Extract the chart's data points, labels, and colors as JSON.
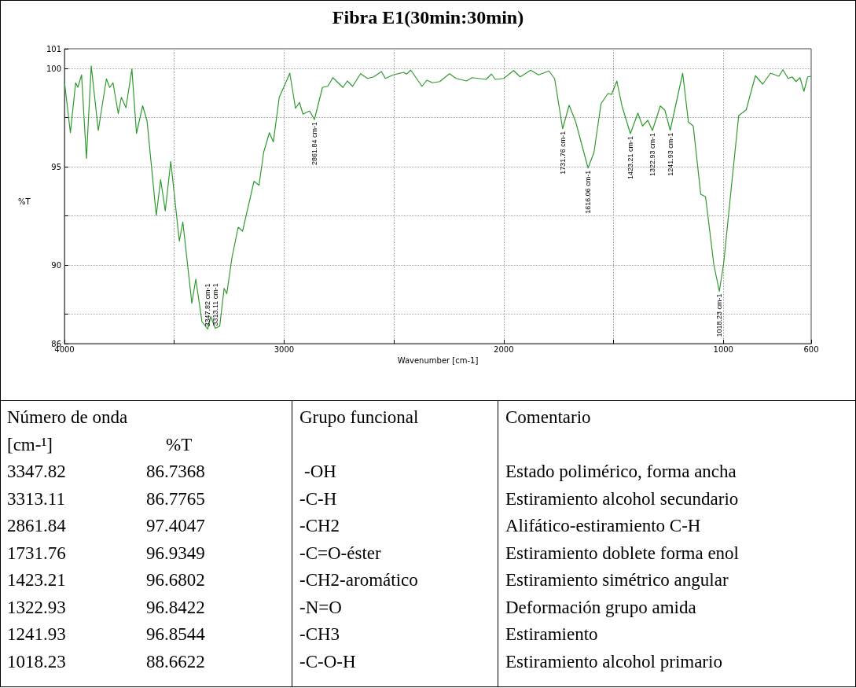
{
  "chart_data": [
    {
      "type": "line",
      "title": "Fibra E1(30min:30min)",
      "xlabel": "Wavenumber [cm-1]",
      "ylabel": "%T",
      "xlim": [
        4000,
        600
      ],
      "xticks": [
        4000,
        {
          "value": 3500,
          "label": null
        },
        3000,
        {
          "value": 2500,
          "label": null
        },
        2000,
        {
          "value": 1500,
          "label": null
        },
        1000,
        600
      ],
      "ylim": [
        86,
        101
      ],
      "yticks": [
        86,
        {
          "value": 87.5,
          "label": null
        },
        90,
        {
          "value": 92.5,
          "label": null
        },
        95,
        {
          "value": 97.5,
          "label": null
        },
        100,
        101
      ],
      "grid": true,
      "marker": "none",
      "line_style": "solid",
      "series": [
        {
          "color": "#2f9a2f",
          "x": [
            4000,
            3973,
            3949,
            3939,
            3922,
            3900,
            3878,
            3846,
            3809,
            3794,
            3779,
            3755,
            3741,
            3720,
            3693,
            3672,
            3644,
            3624,
            3582,
            3562,
            3541,
            3516,
            3477,
            3461,
            3420,
            3402,
            3374,
            3347.82,
            3334,
            3313.11,
            3293,
            3273,
            3261,
            3237,
            3209,
            3189,
            3137,
            3114,
            3093,
            3067,
            3049,
            3022,
            2998,
            2974,
            2948,
            2930,
            2914,
            2884,
            2861.84,
            2825,
            2801,
            2778,
            2732,
            2712,
            2688,
            2652,
            2620,
            2592,
            2557,
            2539,
            2503,
            2455,
            2443,
            2423,
            2372,
            2350,
            2324,
            2291,
            2247,
            2217,
            2169,
            2145,
            2080,
            2056,
            2038,
            2000,
            1955,
            1925,
            1877,
            1842,
            1794,
            1768,
            1731.76,
            1702,
            1672,
            1616.06,
            1589,
            1557,
            1525,
            1509,
            1485,
            1461,
            1423.21,
            1389,
            1368,
            1344,
            1322.93,
            1287,
            1266,
            1241.93,
            1185,
            1159,
            1137,
            1103,
            1081,
            1043,
            1018.23,
            998,
            962,
            930,
            896,
            854,
            821,
            785,
            747,
            729,
            705,
            687,
            669,
            651,
            633,
            616,
            600
          ],
          "values": [
            99.33,
            96.73,
            99.27,
            99.04,
            99.67,
            95.42,
            100.13,
            96.84,
            99.47,
            99.03,
            99.27,
            97.7,
            98.53,
            98.0,
            99.97,
            96.69,
            98.1,
            97.33,
            92.52,
            94.35,
            92.75,
            95.27,
            91.21,
            92.19,
            88.05,
            89.28,
            87.12,
            86.74,
            87.38,
            86.78,
            86.89,
            88.81,
            88.54,
            90.39,
            91.92,
            91.72,
            94.26,
            94.06,
            95.73,
            96.73,
            96.26,
            98.53,
            99.13,
            99.76,
            97.97,
            98.27,
            97.67,
            97.84,
            97.4,
            99.04,
            99.09,
            99.53,
            99.03,
            99.36,
            99.09,
            99.73,
            99.49,
            99.57,
            99.84,
            99.49,
            99.67,
            99.8,
            99.71,
            99.91,
            99.09,
            99.4,
            99.27,
            99.33,
            99.73,
            99.49,
            99.36,
            99.53,
            99.44,
            99.71,
            99.44,
            99.49,
            99.89,
            99.57,
            99.91,
            99.67,
            99.87,
            99.47,
            96.93,
            98.13,
            97.27,
            94.93,
            95.73,
            98.2,
            98.73,
            98.67,
            99.36,
            98.07,
            96.68,
            97.73,
            97.07,
            97.36,
            96.84,
            98.09,
            97.87,
            96.85,
            99.76,
            97.27,
            97.07,
            93.6,
            93.47,
            90.0,
            88.66,
            90.13,
            94.13,
            97.6,
            97.89,
            99.63,
            99.2,
            99.76,
            99.6,
            99.93,
            99.49,
            99.57,
            99.33,
            99.53,
            98.83,
            99.57,
            99.6
          ]
        }
      ],
      "annotations": [
        {
          "text": "3347.82 cm-1",
          "x": 3347.82,
          "y": 86.74
        },
        {
          "text": "3313.11 cm-1",
          "x": 3313.11,
          "y": 86.78
        },
        {
          "text": "2861.84 cm-1",
          "x": 2861.84,
          "y": 97.4
        },
        {
          "text": "1731.76 cm-1",
          "x": 1731.76,
          "y": 96.93
        },
        {
          "text": "1616.06 cm-1",
          "x": 1616.06,
          "y": 94.93
        },
        {
          "text": "1423.21 cm-1",
          "x": 1423.21,
          "y": 96.68
        },
        {
          "text": "1322.93 cm-1",
          "x": 1322.93,
          "y": 96.84
        },
        {
          "text": "1241.93 cm-1",
          "x": 1241.93,
          "y": 96.85
        },
        {
          "text": "1018.23 cm-1",
          "x": 1018.23,
          "y": 88.66
        }
      ]
    },
    {
      "type": "other",
      "annotations": [
        "Número de onda",
        "[cm-¹]",
        "%T",
        "Grupo funcional",
        "Comentario",
        "3347.82",
        "86.7368",
        "-OH",
        "Estado polimérico, forma ancha",
        "3313.11",
        "86.7765",
        "-C-H",
        "Estiramiento alcohol secundario",
        "2861.84",
        "97.4047",
        "-CH2",
        "Alifático-estiramiento C-H",
        "1731.76",
        "96.9349",
        "-C=O-éster",
        "Estiramiento doblete forma enol",
        "1423.21",
        "96.6802",
        "-CH2-aromático",
        "Estiramiento simétrico angular",
        "1322.93",
        "96.8422",
        "-N=O",
        "Deformación grupo amida",
        "1241.93",
        "96.8544",
        "-CH3",
        "Estiramiento",
        "1018.23",
        "88.6622",
        "-C-O-H",
        "Estiramiento alcohol primario"
      ]
    }
  ]
}
